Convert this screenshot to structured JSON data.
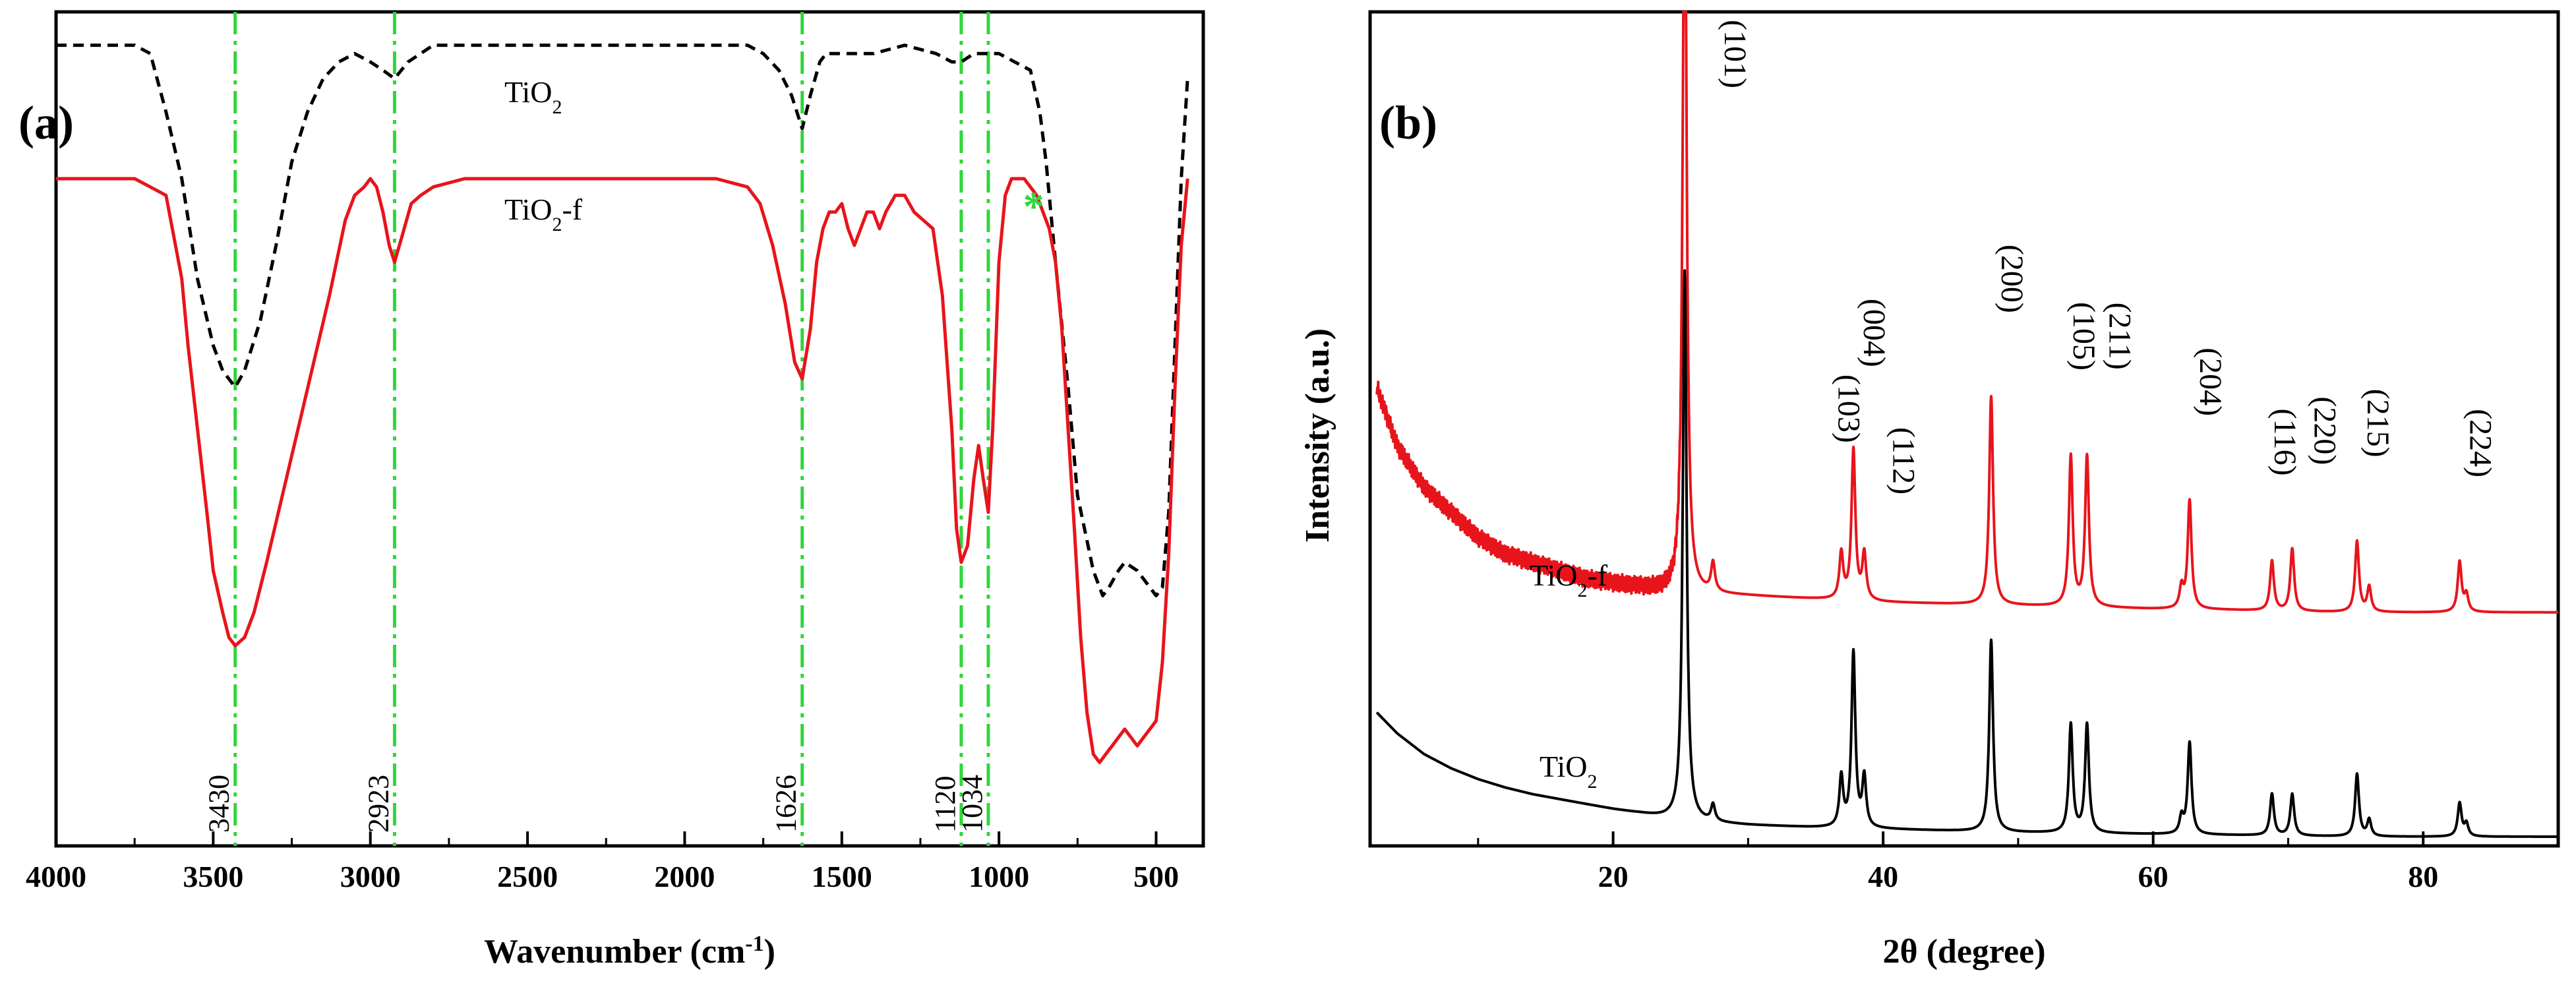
{
  "chart_data": [
    {
      "type": "line",
      "panel_label": "(a)",
      "title": "",
      "xlabel": "Wavenumber (cm",
      "xlabel_sup": "-1",
      "xlabel_end": ")",
      "ylabel": "",
      "xlim": [
        4000,
        350
      ],
      "x_reversed": true,
      "xticks": [
        4000,
        3500,
        3000,
        2500,
        2000,
        1500,
        1000,
        500
      ],
      "xtick_labels": [
        "4000",
        "3500",
        "3000",
        "2500",
        "2000",
        "1500",
        "1000",
        "500"
      ],
      "ylim": [
        0,
        100
      ],
      "series": [
        {
          "name": "TiO2",
          "label_main": "TiO",
          "label_sub": "2",
          "label_suffix": "",
          "color": "#000000",
          "dash": "dashed",
          "x": [
            4000,
            3750,
            3700,
            3650,
            3600,
            3550,
            3500,
            3470,
            3430,
            3400,
            3350,
            3300,
            3250,
            3200,
            3150,
            3100,
            3050,
            3000,
            2960,
            2923,
            2880,
            2800,
            2700,
            2500,
            2300,
            2100,
            1900,
            1800,
            1750,
            1700,
            1660,
            1626,
            1600,
            1570,
            1550,
            1500,
            1400,
            1300,
            1200,
            1150,
            1120,
            1080,
            1034,
            1000,
            950,
            900,
            870,
            850,
            820,
            780,
            750,
            700,
            670,
            650,
            620,
            600,
            560,
            520,
            500,
            480,
            460,
            440,
            420,
            400
          ],
          "y": [
            96,
            96,
            95,
            88,
            80,
            68,
            60,
            57,
            55,
            57,
            63,
            72,
            82,
            88,
            92,
            94,
            95,
            94,
            93,
            92,
            94,
            96,
            96,
            96,
            96,
            96,
            96,
            96,
            95,
            93,
            90,
            86,
            90,
            94,
            95,
            95,
            95,
            96,
            95,
            94,
            94,
            95,
            95,
            95,
            94,
            93,
            88,
            82,
            70,
            55,
            42,
            33,
            30,
            31,
            33,
            34,
            33,
            31,
            30,
            31,
            40,
            60,
            80,
            92
          ]
        },
        {
          "name": "TiO2-f",
          "label_main": "TiO",
          "label_sub": "2",
          "label_suffix": "-f",
          "color": "#e8141b",
          "dash": "solid",
          "x": [
            4000,
            3750,
            3700,
            3650,
            3630,
            3600,
            3580,
            3550,
            3520,
            3500,
            3470,
            3450,
            3430,
            3400,
            3370,
            3330,
            3280,
            3230,
            3180,
            3130,
            3080,
            3050,
            3020,
            3000,
            2980,
            2960,
            2940,
            2923,
            2900,
            2870,
            2840,
            2800,
            2700,
            2500,
            2300,
            2100,
            1900,
            1800,
            1760,
            1720,
            1680,
            1650,
            1626,
            1600,
            1580,
            1560,
            1540,
            1520,
            1500,
            1480,
            1460,
            1440,
            1420,
            1400,
            1380,
            1360,
            1330,
            1300,
            1270,
            1240,
            1210,
            1180,
            1150,
            1135,
            1120,
            1100,
            1080,
            1065,
            1050,
            1034,
            1020,
            1000,
            980,
            960,
            940,
            920,
            900,
            880,
            860,
            840,
            820,
            800,
            780,
            760,
            740,
            720,
            700,
            680,
            660,
            640,
            620,
            600,
            580,
            560,
            540,
            520,
            500,
            480,
            460,
            440,
            420,
            400
          ],
          "y": [
            80,
            80,
            79,
            78,
            74,
            68,
            60,
            50,
            40,
            33,
            28,
            25,
            24,
            25,
            28,
            34,
            42,
            50,
            58,
            66,
            75,
            78,
            79,
            80,
            79,
            76,
            72,
            70,
            73,
            77,
            78,
            79,
            80,
            80,
            80,
            80,
            80,
            79,
            77,
            72,
            65,
            58,
            56,
            62,
            70,
            74,
            76,
            76,
            77,
            74,
            72,
            74,
            76,
            76,
            74,
            76,
            78,
            78,
            76,
            75,
            74,
            66,
            50,
            38,
            34,
            36,
            44,
            48,
            44,
            40,
            50,
            70,
            78,
            80,
            80,
            80,
            79,
            78,
            76,
            74,
            70,
            62,
            50,
            38,
            25,
            16,
            11,
            10,
            11,
            12,
            13,
            14,
            13,
            12,
            13,
            14,
            15,
            22,
            35,
            55,
            72,
            80
          ]
        }
      ],
      "peaks": [
        {
          "x": 3430,
          "label": "3430"
        },
        {
          "x": 2923,
          "label": "2923"
        },
        {
          "x": 1626,
          "label": "1626"
        },
        {
          "x": 1120,
          "label": "1120"
        },
        {
          "x": 1034,
          "label": "1034"
        }
      ],
      "peak_line_color": "#2fd63a",
      "annotation": {
        "text": "*",
        "x": 890,
        "y": 78,
        "color": "#2fd63a"
      }
    },
    {
      "type": "line",
      "panel_label": "(b)",
      "title": "",
      "xlabel": "2θ (degree)",
      "ylabel": "Intensity (a.u.)",
      "xlim": [
        2,
        90
      ],
      "xticks": [
        20,
        40,
        60,
        80
      ],
      "xtick_labels": [
        "20",
        "40",
        "60",
        "80"
      ],
      "ylim": [
        0,
        100
      ],
      "series": [
        {
          "name": "TiO2-f",
          "label_main": "TiO",
          "label_sub": "2",
          "label_suffix": "-f",
          "color": "#e8141b",
          "baseline": [
            [
              2.5,
              55
            ],
            [
              4,
              48
            ],
            [
              6,
              43
            ],
            [
              8,
              40
            ],
            [
              10,
              37
            ],
            [
              12,
              35
            ],
            [
              14,
              34
            ],
            [
              16,
              33
            ],
            [
              18,
              32
            ],
            [
              20,
              31.5
            ],
            [
              22,
              31
            ],
            [
              24,
              30.5
            ],
            [
              25,
              30.3
            ],
            [
              30,
              30
            ],
            [
              35,
              29.6
            ],
            [
              40,
              29.2
            ],
            [
              45,
              29
            ],
            [
              50,
              28.8
            ],
            [
              55,
              28.6
            ],
            [
              60,
              28.4
            ],
            [
              65,
              28.3
            ],
            [
              70,
              28.1
            ],
            [
              75,
              28
            ],
            [
              80,
              28
            ],
            [
              85,
              28
            ],
            [
              90,
              28
            ]
          ],
          "peaks": [
            [
              25.3,
              96
            ],
            [
              27.4,
              3.5
            ],
            [
              36.9,
              5.5
            ],
            [
              37.8,
              18
            ],
            [
              38.6,
              5.5
            ],
            [
              48.0,
              25
            ],
            [
              53.9,
              18
            ],
            [
              55.1,
              18
            ],
            [
              62.1,
              2.5
            ],
            [
              62.7,
              13
            ],
            [
              68.8,
              6
            ],
            [
              70.3,
              7.5
            ],
            [
              75.1,
              8.5
            ],
            [
              76.0,
              3
            ],
            [
              82.7,
              6
            ],
            [
              83.2,
              2
            ]
          ]
        },
        {
          "name": "TiO2",
          "label_main": "TiO",
          "label_sub": "2",
          "label_suffix": "",
          "color": "#000000",
          "baseline": [
            [
              2.5,
              16
            ],
            [
              4,
              13.5
            ],
            [
              6,
              11
            ],
            [
              8,
              9.3
            ],
            [
              10,
              8
            ],
            [
              12,
              7
            ],
            [
              14,
              6.2
            ],
            [
              16,
              5.6
            ],
            [
              18,
              5
            ],
            [
              20,
              4.4
            ],
            [
              22,
              3.9
            ],
            [
              24,
              3.3
            ],
            [
              25,
              3
            ],
            [
              30,
              2.5
            ],
            [
              35,
              2.2
            ],
            [
              40,
              2
            ],
            [
              45,
              1.8
            ],
            [
              50,
              1.6
            ],
            [
              55,
              1.5
            ],
            [
              60,
              1.4
            ],
            [
              65,
              1.3
            ],
            [
              70,
              1.2
            ],
            [
              75,
              1.1
            ],
            [
              80,
              1.1
            ],
            [
              85,
              1.1
            ],
            [
              90,
              1.1
            ]
          ],
          "peaks": [
            [
              25.3,
              66
            ],
            [
              27.4,
              2
            ],
            [
              36.9,
              6
            ],
            [
              37.8,
              21
            ],
            [
              38.6,
              6
            ],
            [
              48.0,
              23
            ],
            [
              53.9,
              13
            ],
            [
              55.1,
              13
            ],
            [
              62.1,
              2
            ],
            [
              62.7,
              11
            ],
            [
              68.8,
              5
            ],
            [
              70.3,
              5
            ],
            [
              75.1,
              7.5
            ],
            [
              76.0,
              2
            ],
            [
              82.7,
              4
            ],
            [
              83.2,
              1.5
            ]
          ]
        }
      ],
      "hkl_labels": [
        {
          "x": 25.3,
          "label": "(101)"
        },
        {
          "x": 36.9,
          "label": "(103)"
        },
        {
          "x": 37.8,
          "label": "(004)"
        },
        {
          "x": 38.6,
          "label": "(112)"
        },
        {
          "x": 48.0,
          "label": "(200)"
        },
        {
          "x": 53.9,
          "label": "(105)"
        },
        {
          "x": 55.1,
          "label": "(211)"
        },
        {
          "x": 62.7,
          "label": "(204)"
        },
        {
          "x": 68.8,
          "label": "(116)"
        },
        {
          "x": 70.3,
          "label": "(220)"
        },
        {
          "x": 75.1,
          "label": "(215)"
        },
        {
          "x": 82.7,
          "label": "(224)"
        }
      ]
    }
  ]
}
